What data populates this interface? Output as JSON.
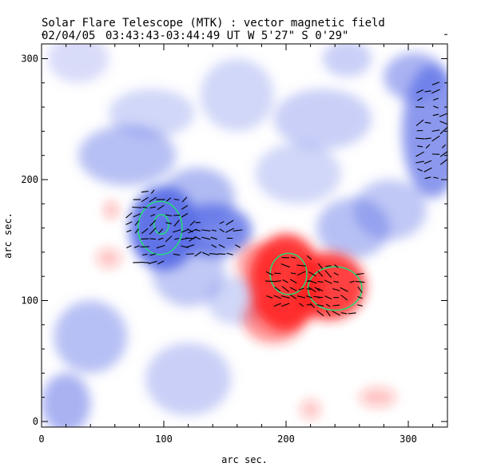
{
  "header": {
    "title": "Solar Flare Telescope (MTK) : vector magnetic field",
    "date": "02/04/05",
    "time_range": "03:43:43-03:44:49 UT",
    "position": "W 5'27\"  S 0'29\""
  },
  "chart_data": {
    "type": "heatmap",
    "xlabel": "arc sec.",
    "ylabel": "arc sec.",
    "xlim": [
      0,
      335
    ],
    "ylim": [
      0,
      320
    ],
    "x_ticks": [
      0,
      100,
      200,
      300
    ],
    "y_ticks": [
      0,
      100,
      200,
      300
    ],
    "colors": {
      "negative_polarity": "#5a6ee6",
      "positive_polarity": "#ff2222",
      "contour": "#22dd77",
      "vector": "#000000"
    },
    "negative_polarity_regions": [
      {
        "x": 100,
        "y": 160,
        "rx": 28,
        "ry": 35,
        "strength": 1.0
      },
      {
        "x": 140,
        "y": 158,
        "rx": 32,
        "ry": 22,
        "strength": 0.85
      },
      {
        "x": 128,
        "y": 185,
        "rx": 30,
        "ry": 25,
        "strength": 0.5
      },
      {
        "x": 320,
        "y": 240,
        "rx": 25,
        "ry": 55,
        "strength": 0.75
      },
      {
        "x": 305,
        "y": 285,
        "rx": 25,
        "ry": 20,
        "strength": 0.55
      },
      {
        "x": 70,
        "y": 220,
        "rx": 40,
        "ry": 25,
        "strength": 0.45
      },
      {
        "x": 90,
        "y": 255,
        "rx": 35,
        "ry": 20,
        "strength": 0.3
      },
      {
        "x": 120,
        "y": 125,
        "rx": 30,
        "ry": 30,
        "strength": 0.4
      },
      {
        "x": 230,
        "y": 250,
        "rx": 40,
        "ry": 25,
        "strength": 0.35
      },
      {
        "x": 210,
        "y": 205,
        "rx": 35,
        "ry": 25,
        "strength": 0.3
      },
      {
        "x": 40,
        "y": 70,
        "rx": 30,
        "ry": 30,
        "strength": 0.45
      },
      {
        "x": 20,
        "y": 15,
        "rx": 20,
        "ry": 25,
        "strength": 0.55
      },
      {
        "x": 120,
        "y": 35,
        "rx": 35,
        "ry": 30,
        "strength": 0.35
      },
      {
        "x": 255,
        "y": 160,
        "rx": 30,
        "ry": 25,
        "strength": 0.45
      },
      {
        "x": 285,
        "y": 175,
        "rx": 30,
        "ry": 25,
        "strength": 0.4
      },
      {
        "x": 160,
        "y": 270,
        "rx": 30,
        "ry": 30,
        "strength": 0.3
      },
      {
        "x": 250,
        "y": 300,
        "rx": 20,
        "ry": 15,
        "strength": 0.35
      },
      {
        "x": 30,
        "y": 300,
        "rx": 25,
        "ry": 20,
        "strength": 0.25
      },
      {
        "x": 160,
        "y": 100,
        "rx": 25,
        "ry": 20,
        "strength": 0.3
      }
    ],
    "positive_polarity_regions": [
      {
        "x": 200,
        "y": 115,
        "rx": 30,
        "ry": 40,
        "strength": 1.0
      },
      {
        "x": 235,
        "y": 112,
        "rx": 30,
        "ry": 28,
        "strength": 0.95
      },
      {
        "x": 190,
        "y": 85,
        "rx": 25,
        "ry": 20,
        "strength": 0.55
      },
      {
        "x": 178,
        "y": 130,
        "rx": 18,
        "ry": 18,
        "strength": 0.5
      },
      {
        "x": 275,
        "y": 20,
        "rx": 15,
        "ry": 8,
        "strength": 0.3
      },
      {
        "x": 220,
        "y": 10,
        "rx": 8,
        "ry": 8,
        "strength": 0.3
      },
      {
        "x": 55,
        "y": 135,
        "rx": 10,
        "ry": 8,
        "strength": 0.3
      },
      {
        "x": 57,
        "y": 175,
        "rx": 5,
        "ry": 7,
        "strength": 0.4
      }
    ],
    "contours": [
      {
        "polarity": "negative",
        "x": 97,
        "y": 160,
        "rx": 18,
        "ry": 22
      },
      {
        "polarity": "negative",
        "x": 98,
        "y": 163,
        "rx": 6,
        "ry": 8
      },
      {
        "polarity": "positive",
        "x": 202,
        "y": 122,
        "rx": 15,
        "ry": 17
      },
      {
        "polarity": "positive",
        "x": 240,
        "y": 110,
        "rx": 22,
        "ry": 18
      }
    ],
    "vector_clusters": [
      {
        "x": 95,
        "y": 160,
        "rx": 30,
        "ry": 35,
        "angle_deg": 20
      },
      {
        "x": 140,
        "y": 150,
        "rx": 25,
        "ry": 18,
        "angle_deg": 0
      },
      {
        "x": 205,
        "y": 115,
        "rx": 25,
        "ry": 25,
        "angle_deg": 170
      },
      {
        "x": 240,
        "y": 108,
        "rx": 25,
        "ry": 25,
        "angle_deg": 160
      },
      {
        "x": 318,
        "y": 240,
        "rx": 15,
        "ry": 45,
        "angle_deg": 10
      }
    ]
  }
}
